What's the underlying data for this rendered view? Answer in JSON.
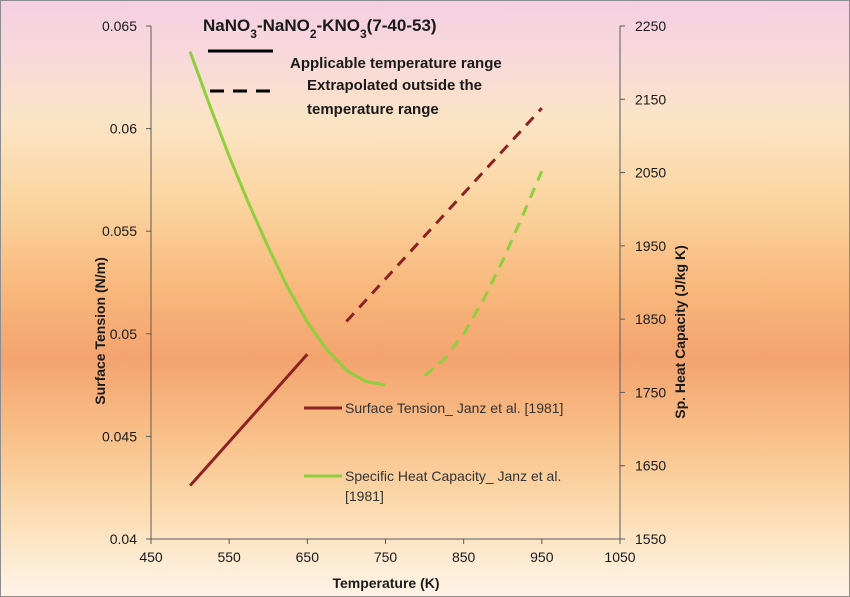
{
  "chart_data": {
    "type": "line",
    "title": {
      "parts": [
        {
          "text": "NaNO",
          "sub": false
        },
        {
          "text": "3",
          "sub": true
        },
        {
          "text": "-NaNO",
          "sub": false
        },
        {
          "text": "2",
          "sub": true
        },
        {
          "text": "-KNO",
          "sub": false
        },
        {
          "text": "3",
          "sub": true
        },
        {
          "text": "(7-40-53)",
          "sub": false
        }
      ]
    },
    "line_style_key": [
      {
        "style": "solid",
        "label": "Applicable temperature range"
      },
      {
        "style": "dashed",
        "label_lines": [
          "Extrapolated outside the",
          "temperature range"
        ]
      }
    ],
    "x_axis": {
      "label": "Temperature (K)",
      "range": [
        450,
        1050
      ],
      "ticks": [
        450,
        550,
        650,
        750,
        850,
        950,
        1050
      ]
    },
    "y_axis_left": {
      "label": "Surface Tension (N/m)",
      "range": [
        0.04,
        0.065
      ],
      "ticks": [
        0.04,
        0.045,
        0.05,
        0.055,
        0.06,
        0.065
      ],
      "tick_labels": [
        "0.04",
        "0.045",
        "0.05",
        "0.055",
        "0.06",
        "0.065"
      ]
    },
    "y_axis_right": {
      "label": "Sp. Heat Capacity (J/kg K)",
      "range": [
        1550,
        2250
      ],
      "ticks": [
        1550,
        1650,
        1750,
        1850,
        1950,
        2050,
        2150,
        2250
      ],
      "tick_labels": [
        "1550",
        "1650",
        "1750",
        "1850",
        "1950",
        "2050",
        "2150",
        "2250"
      ]
    },
    "legend": {
      "placement": "center-right",
      "entries": [
        {
          "series": 0,
          "label_lines": [
            "Surface Tension_ Janz et al. [1981]"
          ]
        },
        {
          "series": 1,
          "label_lines": [
            "Specific Heat Capacity_ Janz et al.",
            "[1981]"
          ]
        }
      ]
    },
    "series": [
      {
        "name": "Surface Tension_ Janz et al. [1981]",
        "color": "#8b2323",
        "axis": "left",
        "segments": [
          {
            "style": "solid",
            "points": [
              [
                500,
                0.0426
              ],
              [
                650,
                0.049
              ]
            ]
          },
          {
            "style": "dashed",
            "points": [
              [
                700,
                0.0506
              ],
              [
                950,
                0.061
              ]
            ]
          }
        ]
      },
      {
        "name": "Specific Heat Capacity_ Janz et al. [1981]",
        "color": "#8fce3c",
        "axis": "right",
        "segments": [
          {
            "style": "solid",
            "points": [
              [
                500,
                2215
              ],
              [
                525,
                2142
              ],
              [
                550,
                2072
              ],
              [
                575,
                2008
              ],
              [
                600,
                1948
              ],
              [
                625,
                1893
              ],
              [
                650,
                1846
              ],
              [
                675,
                1808
              ],
              [
                700,
                1780
              ],
              [
                725,
                1765
              ],
              [
                750,
                1760
              ]
            ]
          },
          {
            "style": "dashed",
            "points": [
              [
                800,
                1773
              ],
              [
                825,
                1795
              ],
              [
                850,
                1830
              ],
              [
                875,
                1876
              ],
              [
                900,
                1930
              ],
              [
                925,
                1990
              ],
              [
                950,
                2052
              ]
            ]
          }
        ]
      }
    ]
  }
}
